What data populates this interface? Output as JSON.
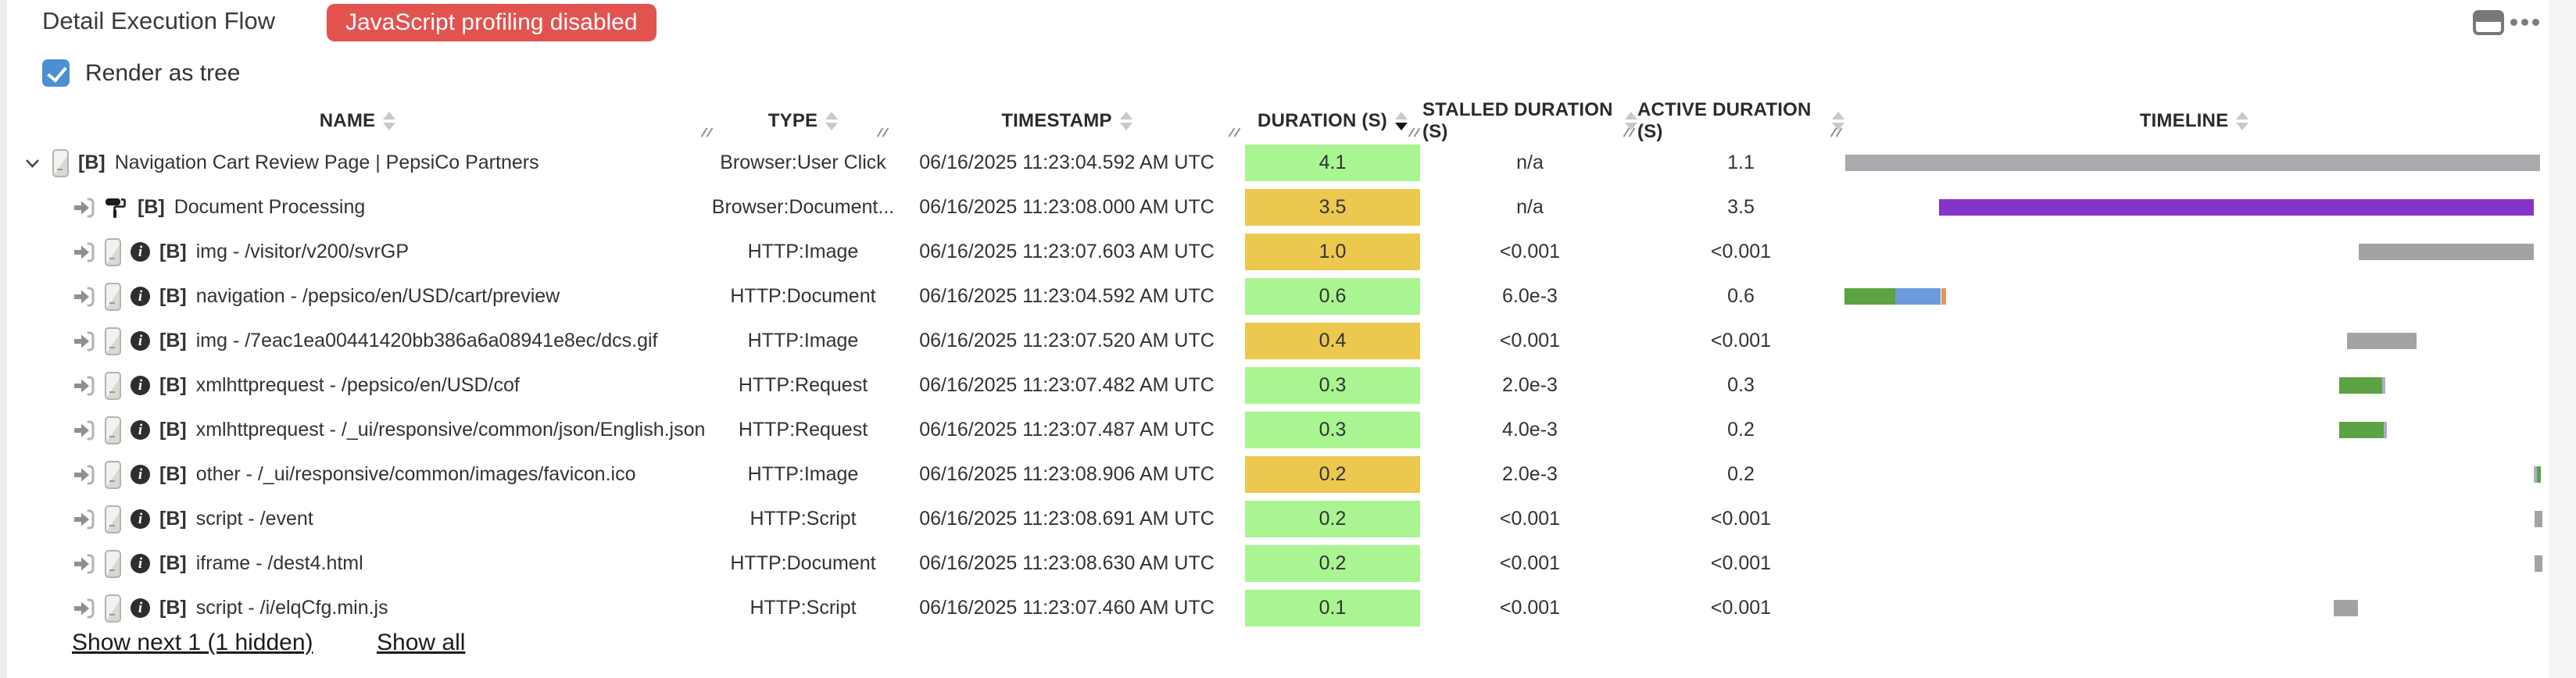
{
  "header": {
    "title": "Detail Execution Flow",
    "badge": "JavaScript profiling disabled",
    "tree_toggle_label": "Render as tree"
  },
  "columns": {
    "name": "NAME",
    "type": "TYPE",
    "timestamp": "TIMESTAMP",
    "duration": "DURATION (S)",
    "stalled": "STALLED DURATION (S)",
    "active": "ACTIVE DURATION (S)",
    "timeline": "TIMELINE"
  },
  "sort": {
    "column": "duration",
    "direction": "descending"
  },
  "colors": {
    "duration_green": "#a9f591",
    "duration_yellow": "#edc84e",
    "timeline_gray": "#a3a3a3",
    "timeline_purple": "#8434c9",
    "timeline_green": "#5da343",
    "timeline_blue": "#6b9bdb",
    "timeline_orange": "#e0955f",
    "badge_red": "#e25350",
    "checkbox_blue": "#4a90d2"
  },
  "rows": [
    {
      "prefix": "[B]",
      "name": "Navigation Cart Review Page | PepsiCo Partners",
      "type": "Browser:User Click",
      "timestamp": "06/16/2025 11:23:04.592 AM UTC",
      "duration": "4.1",
      "duration_color": "#a9f591",
      "stalled": "n/a",
      "active": "1.1",
      "timeline": [
        {
          "l": 0.1,
          "w": 99.3,
          "c": "#aba8ae"
        }
      ]
    },
    {
      "prefix": "[B]",
      "name": "Document Processing",
      "type": "Browser:Document...",
      "timestamp": "06/16/2025 11:23:08.000 AM UTC",
      "duration": "3.5",
      "duration_color": "#edc84e",
      "stalled": "n/a",
      "active": "3.5",
      "timeline": [
        {
          "l": 13.5,
          "w": 85.0,
          "c": "#8434c9"
        }
      ]
    },
    {
      "prefix": "[B]",
      "name": "img - /visitor/v200/svrGP",
      "type": "HTTP:Image",
      "timestamp": "06/16/2025 11:23:07.603 AM UTC",
      "duration": "1.0",
      "duration_color": "#edc84e",
      "stalled": "<0.001",
      "active": "<0.001",
      "timeline": [
        {
          "l": 73.5,
          "w": 25.0,
          "c": "#a3a3a3"
        }
      ]
    },
    {
      "prefix": "[B]",
      "name": "navigation - /pepsico/en/USD/cart/preview",
      "type": "HTTP:Document",
      "timestamp": "06/16/2025 11:23:04.592 AM UTC",
      "duration": "0.6",
      "duration_color": "#a9f591",
      "stalled": "6.0e-3",
      "active": "0.6",
      "timeline": [
        {
          "l": 0.0,
          "w": 7.3,
          "c": "#5da343"
        },
        {
          "l": 7.3,
          "w": 6.4,
          "c": "#6b9bdb"
        },
        {
          "l": 13.9,
          "w": 0.6,
          "c": "#e0955f"
        }
      ]
    },
    {
      "prefix": "[B]",
      "name": "img - /7eac1ea00441420bb386a6a08941e8ec/dcs.gif",
      "type": "HTTP:Image",
      "timestamp": "06/16/2025 11:23:07.520 AM UTC",
      "duration": "0.4",
      "duration_color": "#edc84e",
      "stalled": "<0.001",
      "active": "<0.001",
      "timeline": [
        {
          "l": 71.8,
          "w": 10.0,
          "c": "#a3a3a3"
        }
      ]
    },
    {
      "prefix": "[B]",
      "name": "xmlhttprequest - /pepsico/en/USD/cof",
      "type": "HTTP:Request",
      "timestamp": "06/16/2025 11:23:07.482 AM UTC",
      "duration": "0.3",
      "duration_color": "#a9f591",
      "stalled": "2.0e-3",
      "active": "0.3",
      "timeline": [
        {
          "l": 70.7,
          "w": 6.2,
          "c": "#5da343"
        },
        {
          "l": 76.9,
          "w": 0.4,
          "c": "#a9aed2"
        }
      ]
    },
    {
      "prefix": "[B]",
      "name": "xmlhttprequest - /_ui/responsive/common/json/English.json",
      "type": "HTTP:Request",
      "timestamp": "06/16/2025 11:23:07.487 AM UTC",
      "duration": "0.3",
      "duration_color": "#a9f591",
      "stalled": "4.0e-3",
      "active": "0.2",
      "timeline": [
        {
          "l": 70.7,
          "w": 6.4,
          "c": "#5da343"
        },
        {
          "l": 77.1,
          "w": 0.4,
          "c": "#a9aed2"
        }
      ]
    },
    {
      "prefix": "[B]",
      "name": "other - /_ui/responsive/common/images/favicon.ico",
      "type": "HTTP:Image",
      "timestamp": "06/16/2025 11:23:08.906 AM UTC",
      "duration": "0.2",
      "duration_color": "#edc84e",
      "stalled": "2.0e-3",
      "active": "0.2",
      "timeline": [
        {
          "l": 98.5,
          "w": 0.5,
          "c": "#a9aed2"
        },
        {
          "l": 99.0,
          "w": 0.6,
          "c": "#5da343"
        }
      ]
    },
    {
      "prefix": "[B]",
      "name": "script - /event",
      "type": "HTTP:Script",
      "timestamp": "06/16/2025 11:23:08.691 AM UTC",
      "duration": "0.2",
      "duration_color": "#a9f591",
      "stalled": "<0.001",
      "active": "<0.001",
      "timeline": [
        {
          "l": 98.7,
          "w": 1.1,
          "c": "#a3a3a3"
        }
      ]
    },
    {
      "prefix": "[B]",
      "name": "iframe - /dest4.html",
      "type": "HTTP:Document",
      "timestamp": "06/16/2025 11:23:08.630 AM UTC",
      "duration": "0.2",
      "duration_color": "#a9f591",
      "stalled": "<0.001",
      "active": "<0.001",
      "timeline": [
        {
          "l": 98.7,
          "w": 1.1,
          "c": "#a3a3a3"
        }
      ]
    },
    {
      "prefix": "[B]",
      "name": "script - /i/elqCfg.min.js",
      "type": "HTTP:Script",
      "timestamp": "06/16/2025 11:23:07.460 AM UTC",
      "duration": "0.1",
      "duration_color": "#a9f591",
      "stalled": "<0.001",
      "active": "<0.001",
      "timeline": [
        {
          "l": 69.9,
          "w": 3.5,
          "c": "#a3a3a3"
        }
      ]
    }
  ],
  "footer": {
    "show_next": "Show next 1 (1 hidden)",
    "show_all": "Show all"
  }
}
